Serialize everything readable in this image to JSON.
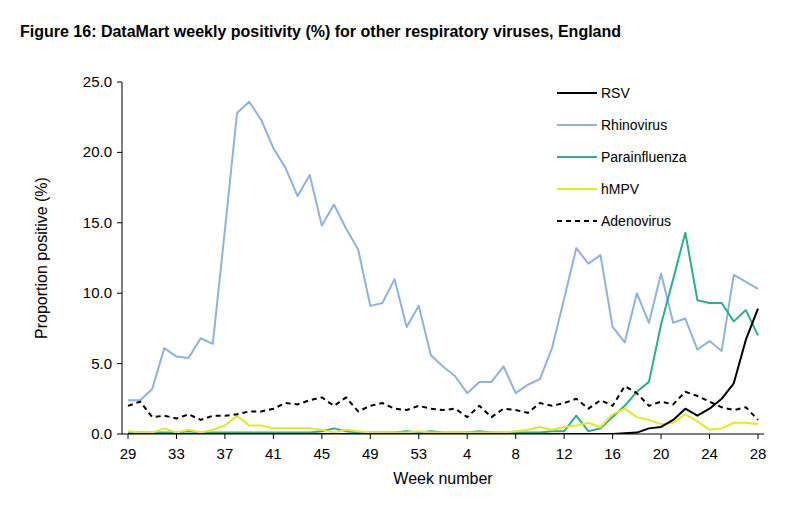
{
  "chart_data": {
    "type": "line",
    "title": "Figure 16: DataMart weekly positivity (%) for other respiratory viruses, England",
    "x_label": "Week number",
    "y_label": "Proportion positive (%)",
    "categories": [
      "29",
      null,
      null,
      null,
      "33",
      null,
      null,
      null,
      "37",
      null,
      null,
      null,
      "41",
      null,
      null,
      null,
      "45",
      null,
      null,
      null,
      "49",
      null,
      null,
      null,
      "53",
      null,
      null,
      null,
      "4",
      null,
      null,
      null,
      "8",
      null,
      null,
      null,
      "12",
      null,
      null,
      null,
      "16",
      null,
      null,
      null,
      "20",
      null,
      null,
      null,
      "24",
      null,
      null,
      null,
      "28"
    ],
    "ylim": [
      0,
      25
    ],
    "yticks": [
      {
        "value": 0,
        "label": "0.0"
      },
      {
        "value": 5,
        "label": "5.0"
      },
      {
        "value": 10,
        "label": "10.0"
      },
      {
        "value": 15,
        "label": "15.0"
      },
      {
        "value": 20,
        "label": "20.0"
      },
      {
        "value": 25,
        "label": "25.0"
      }
    ],
    "legend": "top-right",
    "series": [
      {
        "name": "RSV",
        "color": "#000000",
        "line_style": "solid",
        "values": [
          0,
          0,
          0,
          0,
          0,
          0,
          0,
          0,
          0,
          0,
          0,
          0,
          0,
          0,
          0,
          0,
          0,
          0,
          0,
          0,
          0,
          0,
          0,
          0,
          0,
          0,
          0,
          0,
          0,
          0,
          0,
          0,
          0,
          0,
          0,
          0,
          0,
          0,
          0,
          0,
          0,
          0.05,
          0.1,
          0.4,
          0.5,
          1.0,
          1.8,
          1.3,
          1.8,
          2.5,
          3.6,
          6.7,
          8.9
        ]
      },
      {
        "name": "Rhinovirus",
        "color": "#8db3de",
        "line_style": "solid",
        "values": [
          2.4,
          2.4,
          3.2,
          6.1,
          5.5,
          5.4,
          6.8,
          6.4,
          14.5,
          22.8,
          23.6,
          22.3,
          20.3,
          18.9,
          16.9,
          18.4,
          14.8,
          16.3,
          14.6,
          13.1,
          9.1,
          9.3,
          11.0,
          7.6,
          9.1,
          5.6,
          4.8,
          4.1,
          2.9,
          3.7,
          3.7,
          4.8,
          2.9,
          3.5,
          3.9,
          6.1,
          9.6,
          13.2,
          12.1,
          12.7,
          7.6,
          6.5,
          10.0,
          7.9,
          11.4,
          7.9,
          8.2,
          6.0,
          6.6,
          5.9,
          11.3,
          10.8,
          10.3
        ]
      },
      {
        "name": "Parainfluenza",
        "color": "#2bb08f",
        "line_style": "solid",
        "values": [
          0.1,
          0.1,
          0.1,
          0.1,
          0.1,
          0.2,
          0.1,
          0.1,
          0.1,
          0.1,
          0.1,
          0.1,
          0.1,
          0.1,
          0.1,
          0.1,
          0.2,
          0.4,
          0.2,
          0.1,
          0.1,
          0.1,
          0.1,
          0.2,
          0.1,
          0.2,
          0.1,
          0.1,
          0.1,
          0.2,
          0.1,
          0.1,
          0.1,
          0.1,
          0.1,
          0.2,
          0.2,
          1.3,
          0.2,
          0.4,
          1.2,
          2.0,
          3.0,
          3.7,
          7.8,
          11.0,
          14.3,
          9.5,
          9.3,
          9.3,
          8.0,
          8.8,
          7.0
        ]
      },
      {
        "name": "hMPV",
        "color": "#e8e820",
        "line_style": "solid",
        "values": [
          0.2,
          0.1,
          0.1,
          0.4,
          0.1,
          0.3,
          0.1,
          0.3,
          0.6,
          1.3,
          0.6,
          0.6,
          0.4,
          0.4,
          0.4,
          0.4,
          0.3,
          0.1,
          0.3,
          0.2,
          0.1,
          0.1,
          0.1,
          0.1,
          0.2,
          0.1,
          0.1,
          0.1,
          0.1,
          0.1,
          0.1,
          0.1,
          0.2,
          0.3,
          0.5,
          0.3,
          0.5,
          0.6,
          0.8,
          0.5,
          1.4,
          1.8,
          1.2,
          1.0,
          0.7,
          0.8,
          1.4,
          0.9,
          0.3,
          0.4,
          0.8,
          0.8,
          0.7
        ]
      },
      {
        "name": "Adenovirus",
        "color": "#000000",
        "line_style": "dashed",
        "values": [
          2.0,
          2.3,
          1.2,
          1.3,
          1.1,
          1.4,
          1.0,
          1.3,
          1.3,
          1.4,
          1.6,
          1.6,
          1.8,
          2.2,
          2.1,
          2.4,
          2.6,
          2.0,
          2.6,
          1.6,
          2.0,
          2.2,
          1.8,
          1.7,
          2.0,
          1.8,
          1.7,
          1.8,
          1.2,
          2.0,
          1.2,
          1.8,
          1.7,
          1.5,
          2.2,
          2.0,
          2.2,
          2.5,
          1.8,
          2.4,
          2.0,
          3.4,
          2.9,
          2.0,
          2.3,
          2.1,
          3.0,
          2.7,
          2.3,
          1.9,
          1.7,
          1.9,
          1.0
        ]
      }
    ]
  }
}
